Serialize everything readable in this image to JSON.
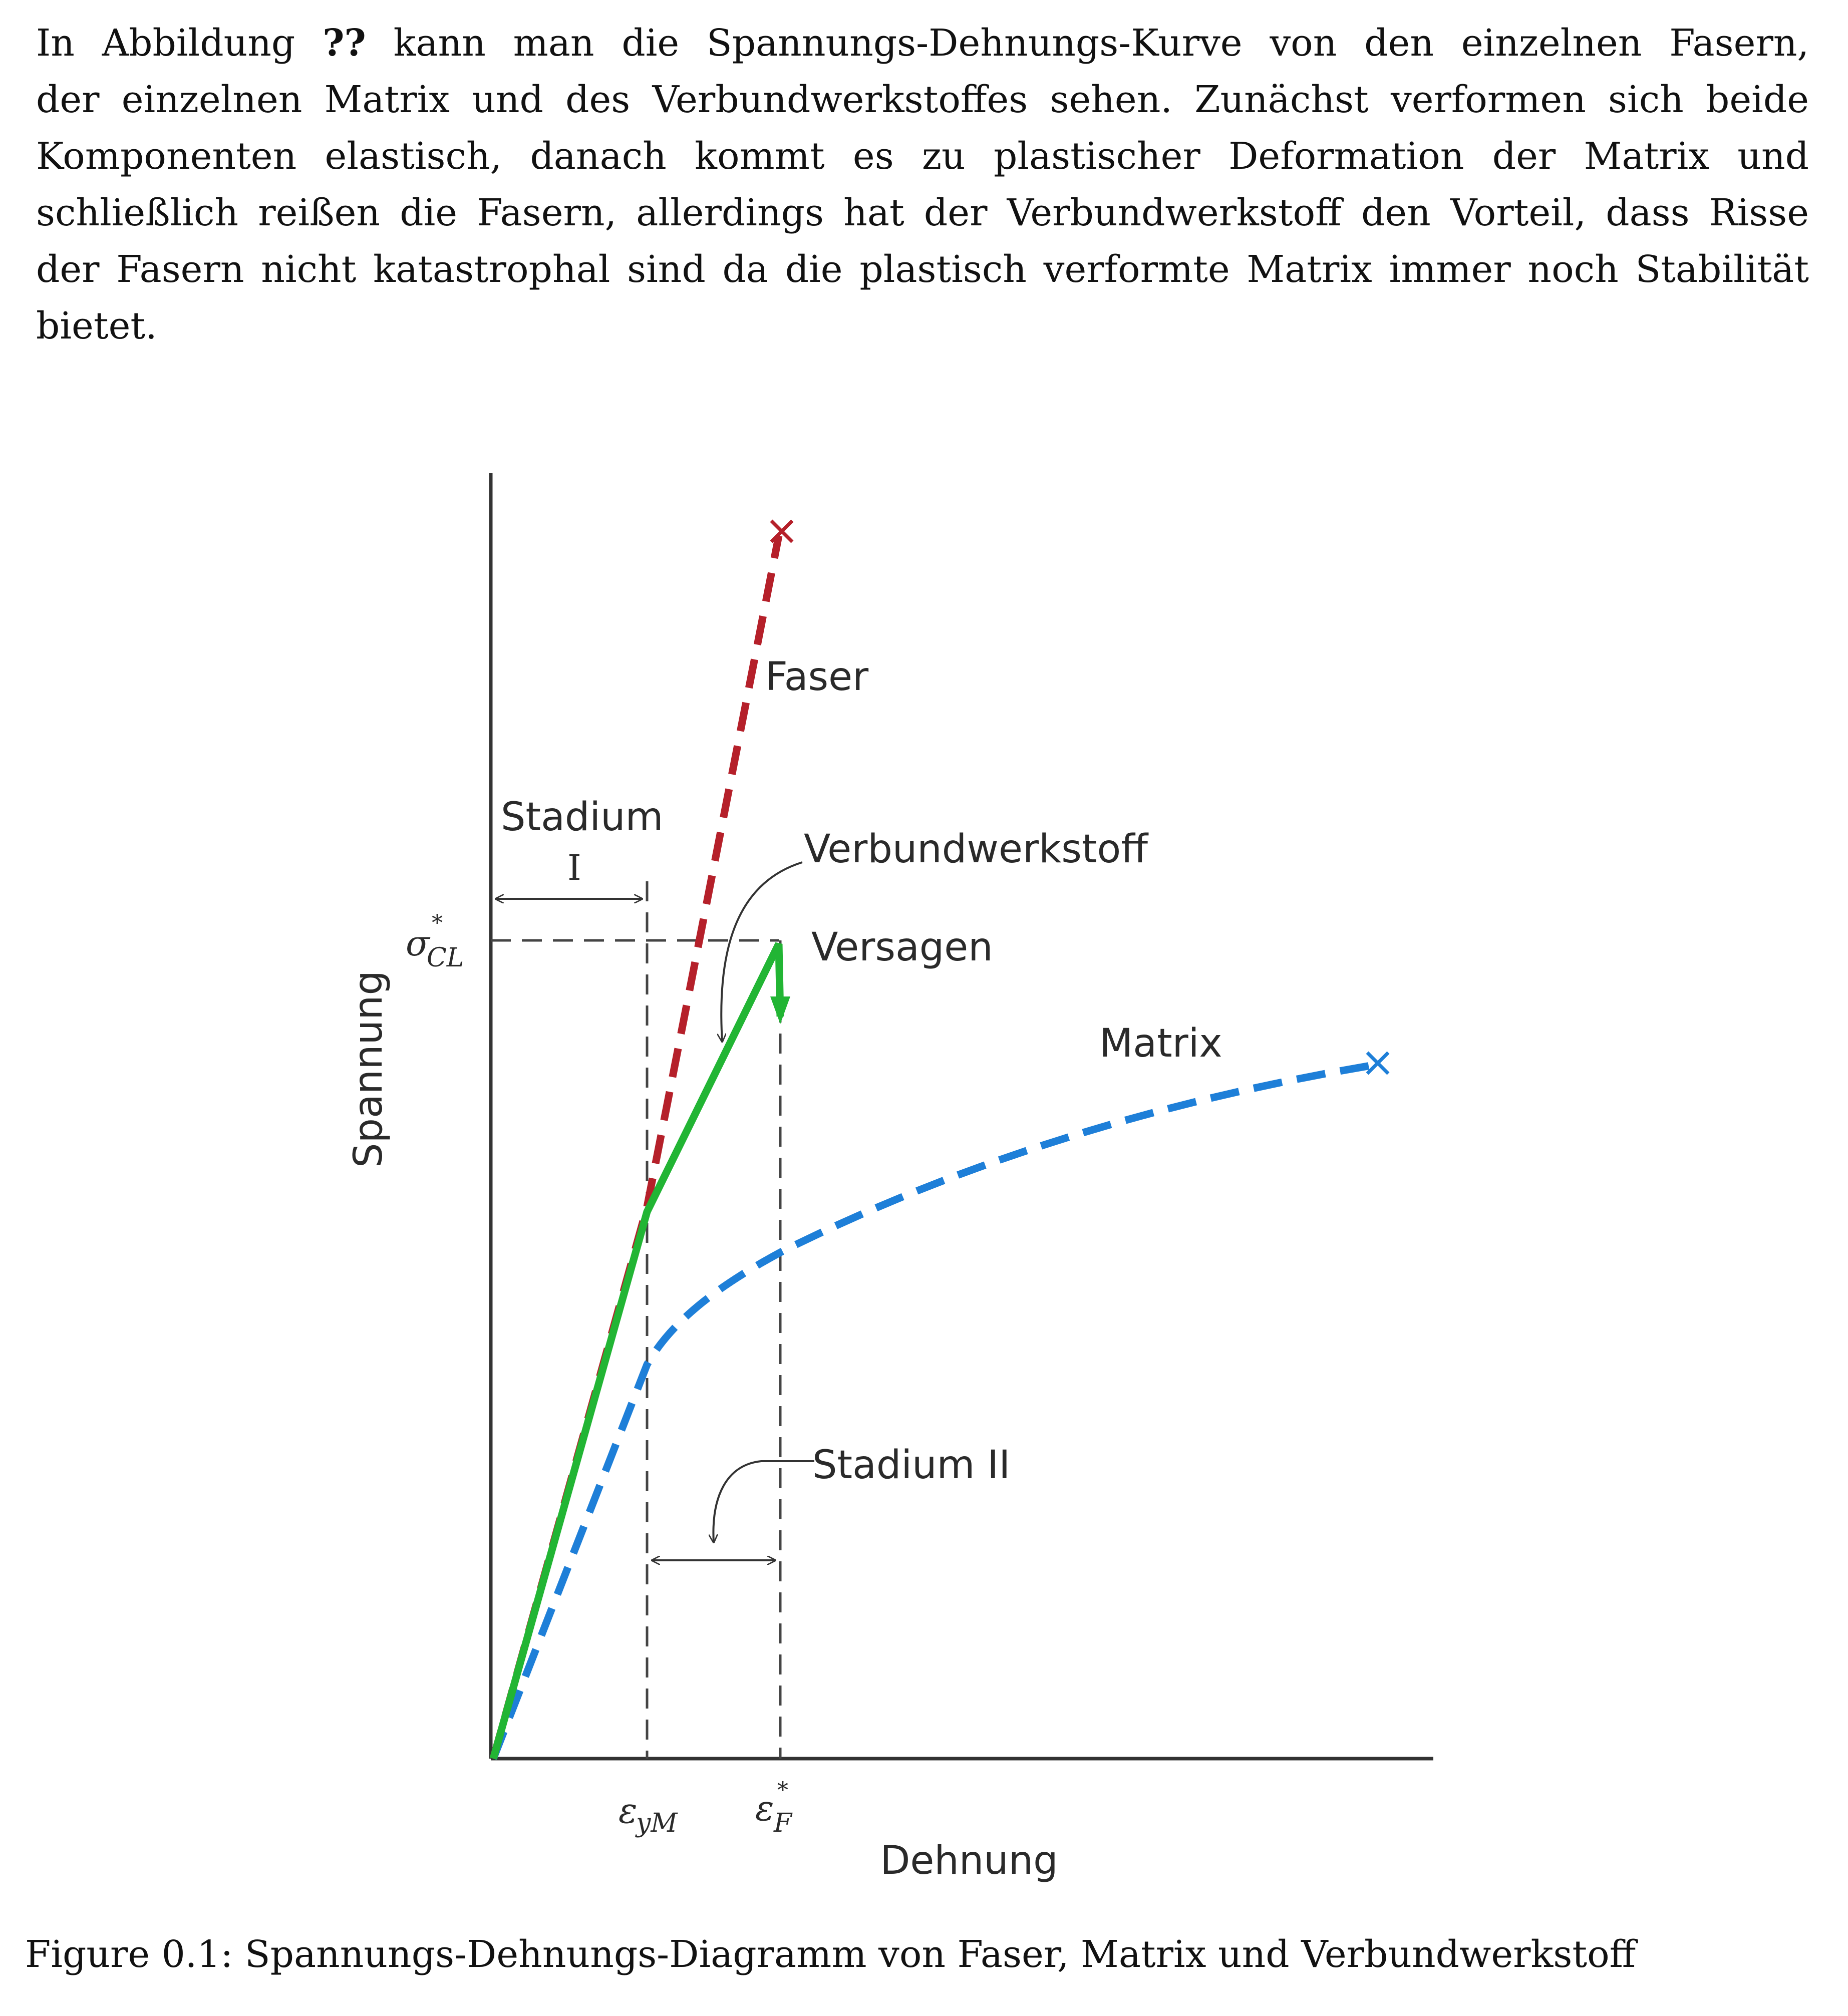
{
  "paragraph": {
    "line1_prefix": "In Abbildung",
    "ref": "??",
    "line1_suffix": "kann man die Spannungs-Dehnungs-Kurve von den einzelnen Fasern,",
    "line2": "der einzelnen Matrix und des Verbundwerkstoffes sehen. Zunächst verformen sich beide",
    "line3": "Komponenten elastisch, danach kommt es zu plastischer Deformation der Matrix und",
    "line4": "schließlich reißen die Fasern, allerdings hat der Verbundwerkstoff den Vorteil, dass Risse",
    "line5": "der Fasern nicht katastrophal sind da die plastisch verformte Matrix immer noch Stabilität",
    "line6": "bietet."
  },
  "figure": {
    "labels": {
      "faser": "Faser",
      "stadium_word": "Stadium",
      "stadium_one": "I",
      "verbundwerkstoff": "Verbundwerkstoff",
      "versagen": "Versagen",
      "matrix": "Matrix",
      "stadium_two": "Stadium II",
      "ylabel": "Spannung",
      "xlabel": "Dehnung",
      "sigma": "σ",
      "sigma_sub": "CL",
      "star": "*",
      "eps_y_sym": "ε",
      "eps_y_sub": "yM",
      "eps_f_sym": "ε",
      "eps_f_sub": "F"
    },
    "colors": {
      "faser": "#b5202a",
      "verbund": "#22b534",
      "matrix": "#1e7fd8",
      "axis": "#333333"
    }
  },
  "caption": {
    "prefix": "Figure 0.1:",
    "text": "Spannungs-Dehnungs-Diagramm von Faser, Matrix und Verbundwerkstoff"
  }
}
